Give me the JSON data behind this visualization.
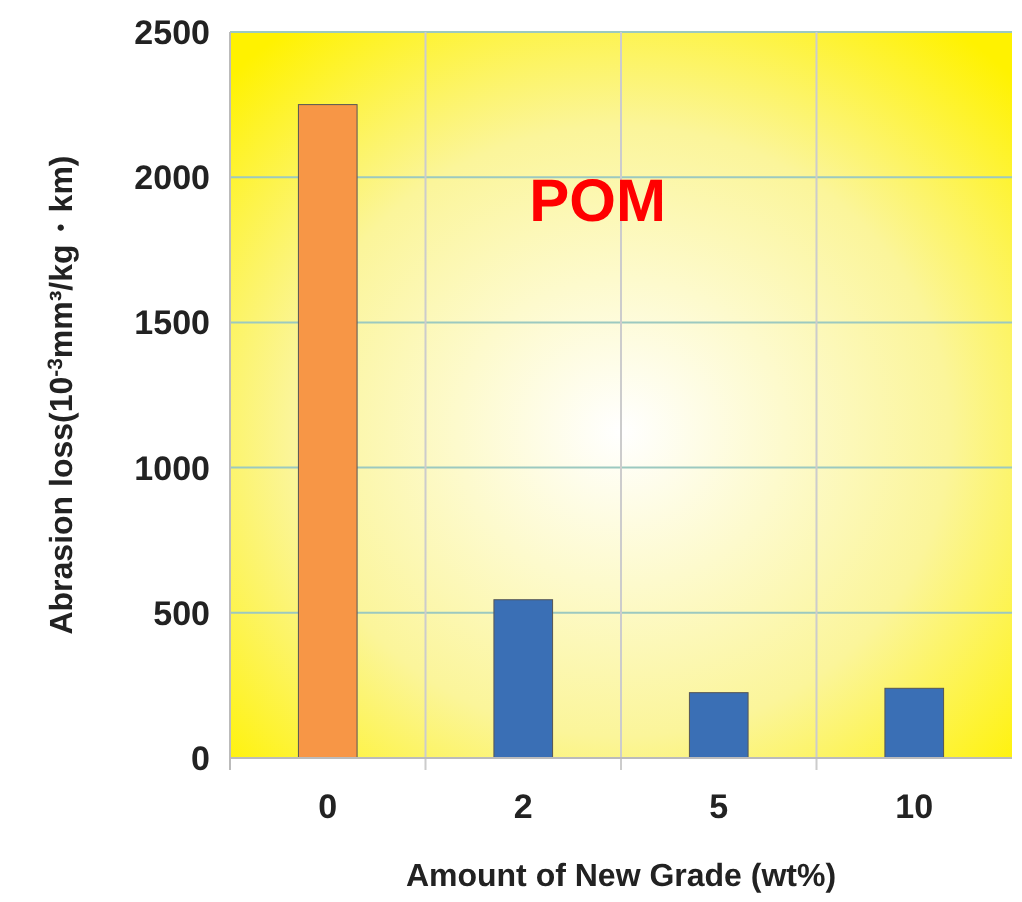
{
  "chart_data": {
    "type": "bar",
    "xlabel": "Amount of New Grade (wt%)",
    "ylabel": "Abrasion loss(10$^{-3}$mm³/kg・km)",
    "categories": [
      "0",
      "2",
      "5",
      "10"
    ],
    "values": [
      2250,
      545,
      225,
      240
    ],
    "colors": [
      "#f79646",
      "#3a6fb5",
      "#3a6fb5",
      "#3a6fb5"
    ],
    "ylim": [
      0,
      2500
    ],
    "yticks": [
      0,
      500,
      1000,
      1500,
      2000,
      2500
    ],
    "grid": "y",
    "annotations": [
      "POM"
    ]
  }
}
